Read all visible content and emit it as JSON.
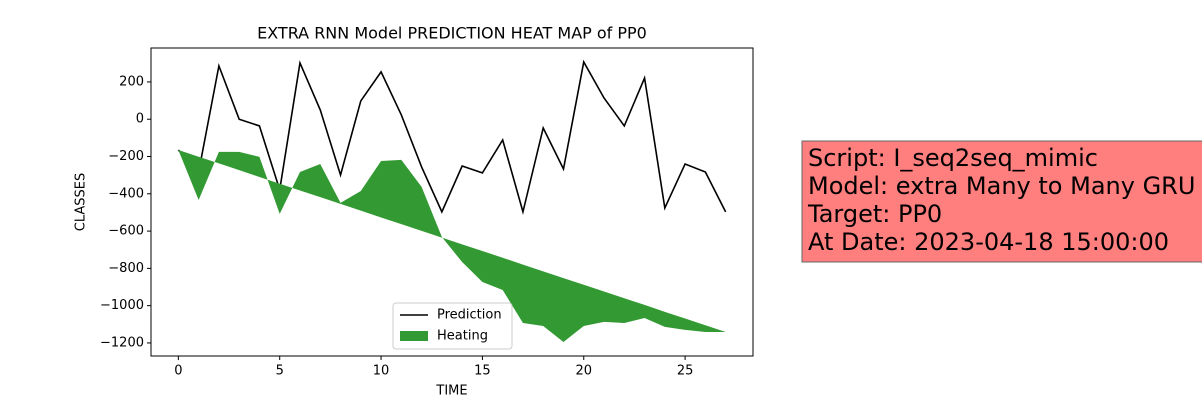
{
  "chart_data": {
    "type": "line",
    "title": "EXTRA RNN Model PREDICTION HEAT MAP of PP0",
    "x_label": "TIME",
    "y_label": "CLASSES",
    "x": [
      0,
      1,
      2,
      3,
      4,
      5,
      6,
      7,
      8,
      9,
      10,
      11,
      12,
      13,
      14,
      15,
      16,
      17,
      18,
      19,
      20,
      21,
      22,
      23,
      24,
      25,
      26,
      27
    ],
    "series": [
      {
        "name": "Prediction",
        "color": "#000000",
        "values": [
          -165,
          -283,
          286,
          0,
          -36,
          -379,
          302,
          50,
          -299,
          98,
          254,
          23,
          -256,
          -497,
          -251,
          -288,
          -111,
          -497,
          -47,
          -267,
          307,
          114,
          -36,
          221,
          -476,
          -240,
          -283,
          -497
        ]
      },
      {
        "name": "Heating",
        "color": "#339933",
        "fill": true,
        "values": [
          -165,
          -433,
          -175,
          -175,
          -202,
          -508,
          -283,
          -240,
          -449,
          -385,
          -224,
          -218,
          -363,
          -632,
          -766,
          -873,
          -916,
          -1093,
          -1109,
          -1195,
          -1109,
          -1087,
          -1093,
          -1066,
          -1114,
          -1130,
          -1141,
          -1141
        ],
        "values2": [
          -165,
          -201,
          -237,
          -273,
          -310,
          -346,
          -382,
          -418,
          -454,
          -490,
          -527,
          -563,
          -599,
          -635,
          -671,
          -707,
          -743,
          -780,
          -816,
          -852,
          -888,
          -924,
          -960,
          -996,
          -1033,
          -1069,
          -1105,
          -1141
        ]
      }
    ],
    "xlim": [
      -1.35,
      28.35
    ],
    "ylim": [
      -1270,
      382
    ],
    "xticks": [
      0,
      5,
      10,
      15,
      20,
      25
    ],
    "yticks": [
      {
        "value": -1200,
        "label": "−1200"
      },
      {
        "value": -1000,
        "label": "−1000"
      },
      {
        "value": -800,
        "label": "−800"
      },
      {
        "value": -600,
        "label": "−600"
      },
      {
        "value": -400,
        "label": "−400"
      },
      {
        "value": -200,
        "label": "−200"
      },
      0,
      200
    ],
    "legend": "lower center",
    "annotation": {
      "lines": [
        "Script: I_seq2seq_mimic",
        "Model: extra Many to Many GRU",
        "Target: PP0",
        "At Date: 2023-04-18 15:00:00"
      ],
      "background": "#ff7f7f"
    }
  }
}
